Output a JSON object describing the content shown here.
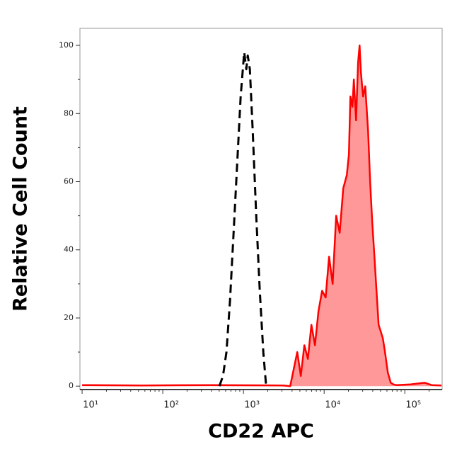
{
  "chart_data": {
    "type": "area",
    "xlabel": "CD22 APC",
    "ylabel": "Relative Cell Count",
    "xscale": "log",
    "xlim": [
      9.4,
      290000
    ],
    "xticks": [
      {
        "value": 10,
        "label": "10¹"
      },
      {
        "value": 100,
        "label": "10²"
      },
      {
        "value": 1000,
        "label": "10³"
      },
      {
        "value": 10000,
        "label": "10⁴"
      },
      {
        "value": 100000,
        "label": "10⁵"
      }
    ],
    "ylim": [
      -1,
      105
    ],
    "yticks": [
      0,
      20,
      40,
      60,
      80,
      100
    ],
    "series": [
      {
        "color": "#000000",
        "dash": true,
        "fill": null,
        "x": [
          503,
          557,
          615,
          681,
          754,
          834,
          923,
          1021,
          1084,
          1130,
          1200,
          1300,
          1439,
          1592,
          1762,
          1909
        ],
        "values": [
          0,
          3,
          10,
          25,
          45,
          65,
          85,
          98,
          93,
          97,
          93,
          75,
          50,
          28,
          10,
          0
        ]
      },
      {
        "color": "#ff0000",
        "dash": false,
        "fill": "#ff9999",
        "x": [
          10,
          55,
          411,
          3100,
          3793,
          4197,
          4645,
          5140,
          5680,
          6285,
          6955,
          7695,
          8510,
          9420,
          10420,
          11510,
          12740,
          14090,
          15600,
          17260,
          19100,
          20280,
          21130,
          22440,
          23340,
          24830,
          26360,
          27480,
          28580,
          30340,
          32280,
          34990,
          37150,
          39450,
          41980,
          44570,
          47320,
          50350,
          53460,
          56750,
          61520,
          66830,
          72440,
          78520,
          117500,
          176200,
          215300,
          285000
        ],
        "values": [
          0.3,
          0.2,
          0.3,
          0.2,
          0,
          5,
          10,
          3,
          12,
          8,
          18,
          12,
          22,
          28,
          26,
          38,
          30,
          50,
          45,
          58,
          62,
          68,
          85,
          82,
          90,
          78,
          95,
          100,
          92,
          85,
          88,
          75,
          60,
          48,
          38,
          28,
          18,
          16,
          14,
          10,
          4,
          1,
          0.5,
          0.3,
          0.5,
          1,
          0.3,
          0.2
        ]
      }
    ]
  }
}
